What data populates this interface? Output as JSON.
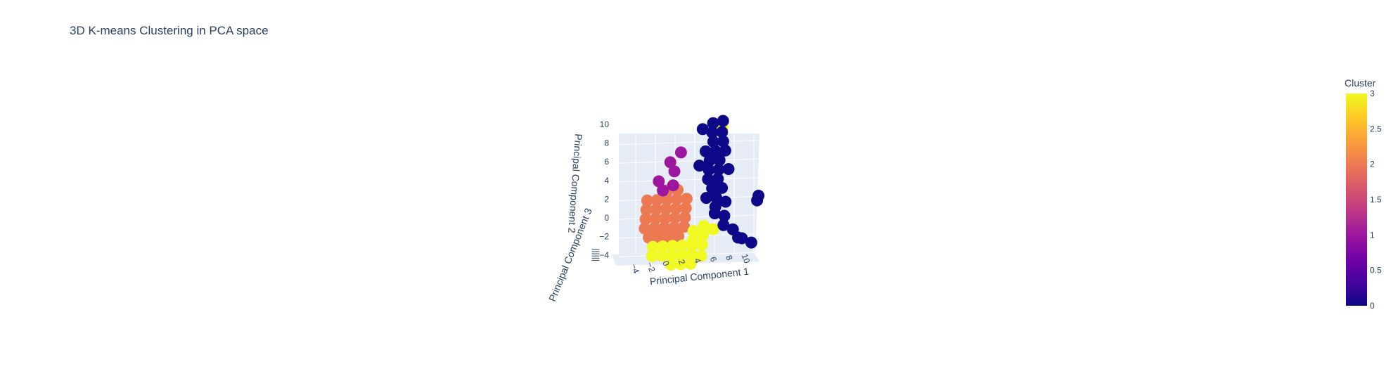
{
  "chart_data": {
    "type": "scatter",
    "dimensions": "3d",
    "title": "3D K-means Clustering in PCA space",
    "axes": {
      "x": {
        "label": "Principal Component 1",
        "ticks": [
          "−4",
          "−2",
          "0",
          "2",
          "4",
          "6",
          "8",
          "10"
        ]
      },
      "y": {
        "label": "Principal Component 2",
        "ticks": [
          "−4",
          "−2",
          "0",
          "2",
          "4",
          "6",
          "8",
          "10"
        ]
      },
      "z": {
        "label": "Principal Component 3"
      }
    },
    "colorbar": {
      "title": "Cluster",
      "ticks": [
        "0",
        "0.5",
        "1",
        "1.5",
        "2",
        "2.5",
        "3"
      ],
      "range": [
        0,
        3
      ],
      "colorscale": [
        "#0d0887",
        "#46039f",
        "#7201a8",
        "#9c179e",
        "#bd3786",
        "#d8576b",
        "#ed7953",
        "#fb9f3a",
        "#fdca26",
        "#f0f921"
      ]
    },
    "series": [
      {
        "cluster": 0,
        "color": "#0d0887",
        "points": [
          [
            3,
            10
          ],
          [
            4,
            10.2
          ],
          [
            2,
            9.4
          ],
          [
            3,
            9
          ],
          [
            4,
            9
          ],
          [
            3.2,
            8
          ],
          [
            4.2,
            8
          ],
          [
            2.5,
            7
          ],
          [
            3.5,
            7
          ],
          [
            4.5,
            7
          ],
          [
            3,
            6
          ],
          [
            4,
            6
          ],
          [
            2,
            5.5
          ],
          [
            3,
            5
          ],
          [
            4,
            5
          ],
          [
            5,
            5
          ],
          [
            3,
            4
          ],
          [
            4,
            4
          ],
          [
            4.5,
            3
          ],
          [
            3.5,
            3
          ],
          [
            3,
            2
          ],
          [
            4,
            2
          ],
          [
            5,
            1.5
          ],
          [
            4,
            1
          ],
          [
            5,
            0
          ],
          [
            4,
            0.3
          ],
          [
            5,
            -1
          ],
          [
            6,
            -1.5
          ],
          [
            6.6,
            -2.4
          ],
          [
            8.2,
            1.5
          ],
          [
            8.3,
            2
          ],
          [
            7,
            -2.5
          ],
          [
            8,
            -3
          ]
        ]
      },
      {
        "cluster": 1,
        "color": "#9c179e",
        "points": [
          [
            0,
            7
          ],
          [
            -1,
            6
          ],
          [
            -0.5,
            5
          ],
          [
            -2,
            4
          ],
          [
            -1.5,
            3
          ],
          [
            -0.5,
            3.5
          ]
        ]
      },
      {
        "cluster": 2,
        "color": "#ed7953",
        "points": [
          [
            -3,
            2
          ],
          [
            -2,
            2
          ],
          [
            -1,
            2
          ],
          [
            0,
            2
          ],
          [
            1,
            2
          ],
          [
            -3,
            1
          ],
          [
            -2,
            1
          ],
          [
            -1,
            1
          ],
          [
            0,
            1
          ],
          [
            1,
            1
          ],
          [
            -3,
            0
          ],
          [
            -2,
            0
          ],
          [
            -1,
            0
          ],
          [
            0,
            0
          ],
          [
            1,
            0
          ],
          [
            -3,
            -1
          ],
          [
            -2,
            -1
          ],
          [
            -1,
            -1
          ],
          [
            0,
            -1
          ],
          [
            1,
            -1
          ],
          [
            -2.5,
            -2
          ],
          [
            -1.5,
            -2
          ],
          [
            -0.5,
            -2
          ],
          [
            0.5,
            -2
          ],
          [
            -1,
            3
          ],
          [
            0,
            3
          ]
        ]
      },
      {
        "cluster": 3,
        "color": "#f0f921",
        "points": [
          [
            -2,
            -3
          ],
          [
            -1,
            -3
          ],
          [
            0,
            -3
          ],
          [
            1,
            -3
          ],
          [
            2,
            -3
          ],
          [
            3,
            -3
          ],
          [
            -2,
            -4
          ],
          [
            -1,
            -4
          ],
          [
            0,
            -4
          ],
          [
            1,
            -4
          ],
          [
            2,
            -4
          ],
          [
            3,
            -4.2
          ],
          [
            0,
            -5
          ],
          [
            1,
            -5
          ],
          [
            2,
            -5
          ],
          [
            2,
            -1.5
          ],
          [
            3,
            -1
          ],
          [
            4,
            -1.4
          ],
          [
            3,
            -2
          ],
          [
            4,
            9.5
          ],
          [
            2,
            -2.5
          ]
        ]
      }
    ]
  }
}
